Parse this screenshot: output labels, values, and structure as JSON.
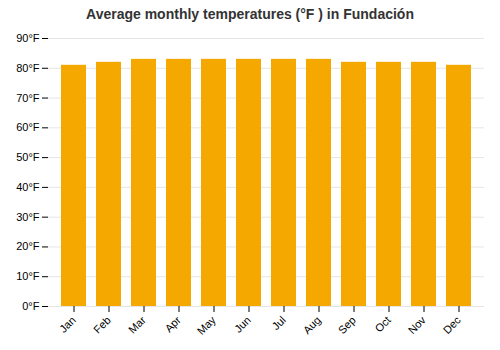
{
  "chart_data": {
    "type": "bar",
    "title": "Average monthly temperatures (°F ) in Fundación",
    "categories": [
      "Jan",
      "Feb",
      "Mar",
      "Apr",
      "May",
      "Jun",
      "Jul",
      "Aug",
      "Sep",
      "Oct",
      "Nov",
      "Dec"
    ],
    "values": [
      81,
      82,
      83,
      83,
      83,
      83,
      83,
      83,
      82,
      82,
      82,
      81
    ],
    "color": "#F5A800",
    "ylim": [
      0,
      90
    ],
    "yticks": [
      {
        "value": 0,
        "label": "0°F"
      },
      {
        "value": 10,
        "label": "10°F"
      },
      {
        "value": 20,
        "label": "20°F"
      },
      {
        "value": 30,
        "label": "30°F"
      },
      {
        "value": 40,
        "label": "40°F"
      },
      {
        "value": 50,
        "label": "50°F"
      },
      {
        "value": 60,
        "label": "60°F"
      },
      {
        "value": 70,
        "label": "70°F"
      },
      {
        "value": 80,
        "label": "80°F"
      },
      {
        "value": 90,
        "label": "90°F"
      }
    ],
    "grid": true
  }
}
